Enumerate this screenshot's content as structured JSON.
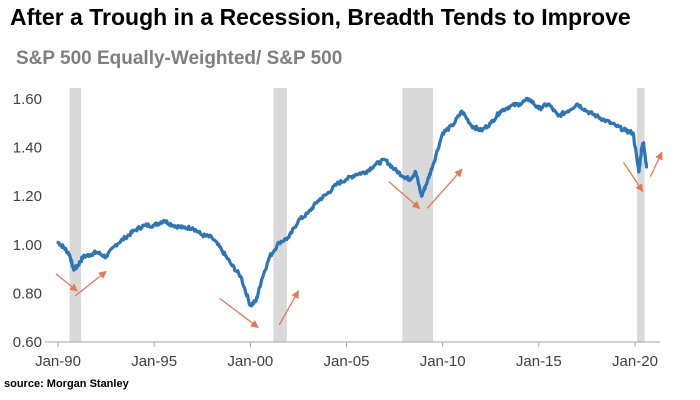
{
  "chart_data": {
    "type": "line",
    "title": "After a Trough in a Recession, Breadth Tends to Improve",
    "subtitle": "S&P 500 Equally-Weighted/ S&P 500",
    "source": "source: Morgan Stanley",
    "xlabel": "",
    "ylabel": "",
    "ylim": [
      0.6,
      1.6
    ],
    "yticks": [
      "0.60",
      "0.80",
      "1.00",
      "1.20",
      "1.40",
      "1.60"
    ],
    "xlim": [
      1990,
      2021.3
    ],
    "xticks": [
      {
        "year": 1990,
        "label": "Jan-90"
      },
      {
        "year": 1995,
        "label": "Jan-95"
      },
      {
        "year": 2000,
        "label": "Jan-00"
      },
      {
        "year": 2005,
        "label": "Jan-05"
      },
      {
        "year": 2010,
        "label": "Jan-10"
      },
      {
        "year": 2015,
        "label": "Jan-15"
      },
      {
        "year": 2020,
        "label": "Jan-20"
      }
    ],
    "recessions": [
      {
        "start": 1990.6,
        "end": 1991.2
      },
      {
        "start": 2001.2,
        "end": 2001.9
      },
      {
        "start": 2007.9,
        "end": 2009.5
      },
      {
        "start": 2020.1,
        "end": 2020.5
      }
    ],
    "series": [
      {
        "name": "S&P 500 Equally-Weighted/ S&P 500",
        "color": "#2e75b6",
        "points": [
          [
            1990.0,
            1.01
          ],
          [
            1990.3,
            0.99
          ],
          [
            1990.6,
            0.96
          ],
          [
            1990.8,
            0.9
          ],
          [
            1991.0,
            0.91
          ],
          [
            1991.3,
            0.95
          ],
          [
            1991.7,
            0.96
          ],
          [
            1992.0,
            0.97
          ],
          [
            1992.5,
            0.95
          ],
          [
            1993.0,
            1.0
          ],
          [
            1993.5,
            1.03
          ],
          [
            1994.0,
            1.06
          ],
          [
            1994.5,
            1.08
          ],
          [
            1995.0,
            1.08
          ],
          [
            1995.5,
            1.1
          ],
          [
            1996.0,
            1.08
          ],
          [
            1996.5,
            1.07
          ],
          [
            1997.0,
            1.07
          ],
          [
            1997.5,
            1.04
          ],
          [
            1998.0,
            1.03
          ],
          [
            1998.5,
            0.98
          ],
          [
            1999.0,
            0.92
          ],
          [
            1999.5,
            0.87
          ],
          [
            2000.0,
            0.75
          ],
          [
            2000.3,
            0.77
          ],
          [
            2000.6,
            0.86
          ],
          [
            2001.0,
            0.95
          ],
          [
            2001.5,
            1.01
          ],
          [
            2002.0,
            1.03
          ],
          [
            2002.5,
            1.1
          ],
          [
            2003.0,
            1.13
          ],
          [
            2003.5,
            1.18
          ],
          [
            2004.0,
            1.21
          ],
          [
            2004.5,
            1.25
          ],
          [
            2005.0,
            1.27
          ],
          [
            2005.5,
            1.29
          ],
          [
            2006.0,
            1.3
          ],
          [
            2006.5,
            1.33
          ],
          [
            2007.0,
            1.35
          ],
          [
            2007.5,
            1.31
          ],
          [
            2008.0,
            1.28
          ],
          [
            2008.3,
            1.27
          ],
          [
            2008.6,
            1.3
          ],
          [
            2008.9,
            1.2
          ],
          [
            2009.2,
            1.26
          ],
          [
            2009.5,
            1.33
          ],
          [
            2010.0,
            1.46
          ],
          [
            2010.5,
            1.49
          ],
          [
            2011.0,
            1.55
          ],
          [
            2011.5,
            1.49
          ],
          [
            2012.0,
            1.47
          ],
          [
            2012.5,
            1.5
          ],
          [
            2013.0,
            1.55
          ],
          [
            2013.5,
            1.57
          ],
          [
            2014.0,
            1.58
          ],
          [
            2014.5,
            1.6
          ],
          [
            2015.0,
            1.56
          ],
          [
            2015.5,
            1.58
          ],
          [
            2016.0,
            1.53
          ],
          [
            2016.5,
            1.55
          ],
          [
            2017.0,
            1.58
          ],
          [
            2017.5,
            1.55
          ],
          [
            2018.0,
            1.53
          ],
          [
            2018.5,
            1.51
          ],
          [
            2019.0,
            1.49
          ],
          [
            2019.5,
            1.47
          ],
          [
            2019.9,
            1.46
          ],
          [
            2020.2,
            1.3
          ],
          [
            2020.35,
            1.4
          ],
          [
            2020.45,
            1.42
          ],
          [
            2020.6,
            1.32
          ]
        ]
      }
    ],
    "annotations": {
      "arrow_color": "#e07b57",
      "arrows": [
        [
          [
            1989.9,
            0.88
          ],
          [
            1991.0,
            0.81
          ]
        ],
        [
          [
            1990.9,
            0.79
          ],
          [
            1992.5,
            0.89
          ]
        ],
        [
          [
            1998.4,
            0.78
          ],
          [
            2000.4,
            0.66
          ]
        ],
        [
          [
            2001.5,
            0.67
          ],
          [
            2002.5,
            0.81
          ]
        ],
        [
          [
            2007.2,
            1.26
          ],
          [
            2008.8,
            1.15
          ]
        ],
        [
          [
            2009.2,
            1.15
          ],
          [
            2011.0,
            1.31
          ]
        ],
        [
          [
            2019.4,
            1.34
          ],
          [
            2020.4,
            1.22
          ]
        ],
        [
          [
            2020.8,
            1.28
          ],
          [
            2021.4,
            1.38
          ]
        ]
      ]
    }
  }
}
